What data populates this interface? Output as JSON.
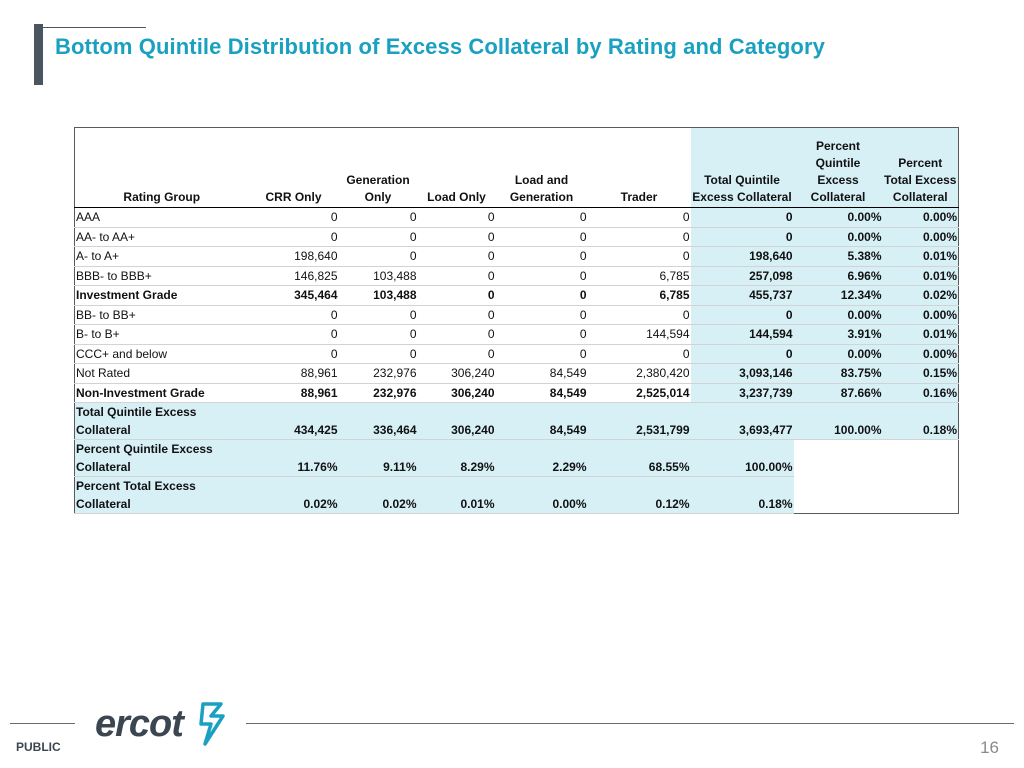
{
  "slide": {
    "title": "Bottom Quintile Distribution of Excess Collateral by Rating and Category",
    "classification": "PUBLIC",
    "page_number": "16",
    "logo_text": "ercot"
  },
  "table": {
    "headers": {
      "rating_group": "Rating Group",
      "crr_only": "CRR Only",
      "generation_only": "Generation Only",
      "load_only": "Load Only",
      "load_and_generation": "Load and Generation",
      "trader": "Trader",
      "total_quintile": "Total Quintile Excess Collateral",
      "pct_quintile": "Percent Quintile Excess Collateral",
      "pct_total": "Percent Total Excess Collateral"
    },
    "rows": [
      {
        "label": "AAA",
        "crr": "0",
        "gen": "0",
        "load": "0",
        "lg": "0",
        "trader": "0",
        "total": "0",
        "pct_q": "0.00%",
        "pct_t": "0.00%"
      },
      {
        "label": "AA- to AA+",
        "crr": "0",
        "gen": "0",
        "load": "0",
        "lg": "0",
        "trader": "0",
        "total": "0",
        "pct_q": "0.00%",
        "pct_t": "0.00%"
      },
      {
        "label": "A- to A+",
        "crr": "198,640",
        "gen": "0",
        "load": "0",
        "lg": "0",
        "trader": "0",
        "total": "198,640",
        "pct_q": "5.38%",
        "pct_t": "0.01%"
      },
      {
        "label": "BBB- to BBB+",
        "crr": "146,825",
        "gen": "103,488",
        "load": "0",
        "lg": "0",
        "trader": "6,785",
        "total": "257,098",
        "pct_q": "6.96%",
        "pct_t": "0.01%"
      },
      {
        "label": "Investment Grade",
        "crr": "345,464",
        "gen": "103,488",
        "load": "0",
        "lg": "0",
        "trader": "6,785",
        "total": "455,737",
        "pct_q": "12.34%",
        "pct_t": "0.02%"
      },
      {
        "label": "BB- to BB+",
        "crr": "0",
        "gen": "0",
        "load": "0",
        "lg": "0",
        "trader": "0",
        "total": "0",
        "pct_q": "0.00%",
        "pct_t": "0.00%"
      },
      {
        "label": "B- to B+",
        "crr": "0",
        "gen": "0",
        "load": "0",
        "lg": "0",
        "trader": "144,594",
        "total": "144,594",
        "pct_q": "3.91%",
        "pct_t": "0.01%"
      },
      {
        "label": "CCC+ and below",
        "crr": "0",
        "gen": "0",
        "load": "0",
        "lg": "0",
        "trader": "0",
        "total": "0",
        "pct_q": "0.00%",
        "pct_t": "0.00%"
      },
      {
        "label": "Not Rated",
        "crr": "88,961",
        "gen": "232,976",
        "load": "306,240",
        "lg": "84,549",
        "trader": "2,380,420",
        "total": "3,093,146",
        "pct_q": "83.75%",
        "pct_t": "0.15%"
      },
      {
        "label": "Non-Investment Grade",
        "crr": "88,961",
        "gen": "232,976",
        "load": "306,240",
        "lg": "84,549",
        "trader": "2,525,014",
        "total": "3,237,739",
        "pct_q": "87.66%",
        "pct_t": "0.16%"
      }
    ],
    "total_row": {
      "label": "Total Quintile  Excess Collateral",
      "crr": "434,425",
      "gen": "336,464",
      "load": "306,240",
      "lg": "84,549",
      "trader": "2,531,799",
      "total": "3,693,477",
      "pct_q": "100.00%",
      "pct_t": "0.18%"
    },
    "pct_quintile_row": {
      "label": "Percent Quintile Excess Collateral",
      "crr": "11.76%",
      "gen": "9.11%",
      "load": "8.29%",
      "lg": "2.29%",
      "trader": "68.55%",
      "total": "100.00%"
    },
    "pct_total_row": {
      "label": "Percent Total Excess Collateral",
      "crr": "0.02%",
      "gen": "0.02%",
      "load": "0.01%",
      "lg": "0.00%",
      "trader": "0.12%",
      "total": "0.18%"
    }
  },
  "colors": {
    "title": "#1aa0c0",
    "highlight": "#d6f0f6",
    "accent_bar": "#4a5560",
    "logo": "#3c4650"
  }
}
